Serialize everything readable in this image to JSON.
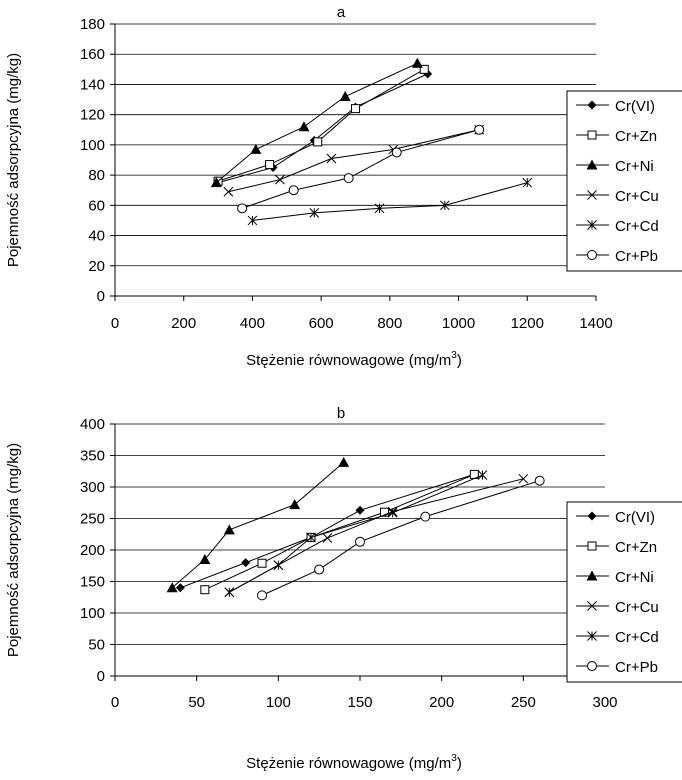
{
  "chart_data": [
    {
      "type": "line",
      "title": "a",
      "xlabel": "Stężenie równowagowe (mg/m",
      "xlabel_sup": "3",
      "xlabel_suffix": ")",
      "ylabel": "Pojemność adsorpcyjna (mg/kg)",
      "xlim": [
        0,
        1400
      ],
      "ylim": [
        0,
        180
      ],
      "xticks": [
        0,
        200,
        400,
        600,
        800,
        1000,
        1200,
        1400
      ],
      "yticks": [
        0,
        20,
        40,
        60,
        80,
        100,
        120,
        140,
        160,
        180
      ],
      "grid": true,
      "legend_position": "right",
      "series": [
        {
          "name": "Cr(VI)",
          "marker": "diamond",
          "x": [
            300,
            460,
            580,
            700,
            910
          ],
          "y": [
            75,
            85,
            103,
            125,
            147
          ]
        },
        {
          "name": "Cr+Zn",
          "marker": "square-open",
          "x": [
            300,
            450,
            590,
            700,
            900
          ],
          "y": [
            76,
            87,
            102,
            124,
            150
          ]
        },
        {
          "name": "Cr+Ni",
          "marker": "triangle",
          "x": [
            295,
            410,
            550,
            670,
            880
          ],
          "y": [
            75,
            97,
            112,
            132,
            154
          ]
        },
        {
          "name": "Cr+Cu",
          "marker": "x",
          "x": [
            330,
            480,
            630,
            810,
            1060
          ],
          "y": [
            69,
            77,
            91,
            97,
            110
          ]
        },
        {
          "name": "Cr+Cd",
          "marker": "asterisk",
          "x": [
            400,
            580,
            770,
            960,
            1200
          ],
          "y": [
            50,
            55,
            58,
            60,
            75
          ]
        },
        {
          "name": "Cr+Pb",
          "marker": "circle-open",
          "x": [
            370,
            520,
            680,
            820,
            1060
          ],
          "y": [
            58,
            70,
            78,
            95,
            110
          ]
        }
      ]
    },
    {
      "type": "line",
      "title": "b",
      "xlabel": "Stężenie równowagowe (mg/m",
      "xlabel_sup": "3",
      "xlabel_suffix": ")",
      "ylabel": "Pojemność adsorpcyjna (mg/kg)",
      "xlim": [
        0,
        300
      ],
      "ylim": [
        0,
        400
      ],
      "xticks": [
        0,
        50,
        100,
        150,
        200,
        250,
        300
      ],
      "yticks": [
        0,
        50,
        100,
        150,
        200,
        250,
        300,
        350,
        400
      ],
      "grid": true,
      "legend_position": "right",
      "series": [
        {
          "name": "Cr(VI)",
          "marker": "diamond",
          "x": [
            40,
            80,
            120,
            150,
            220
          ],
          "y": [
            140,
            180,
            220,
            263,
            320
          ]
        },
        {
          "name": "Cr+Zn",
          "marker": "square-open",
          "x": [
            55,
            90,
            120,
            165,
            220
          ],
          "y": [
            137,
            179,
            220,
            260,
            320
          ]
        },
        {
          "name": "Cr+Ni",
          "marker": "triangle",
          "x": [
            35,
            55,
            70,
            110,
            140
          ],
          "y": [
            140,
            185,
            232,
            272,
            339
          ]
        },
        {
          "name": "Cr+Cu",
          "marker": "x",
          "x": [
            70,
            100,
            130,
            170,
            250
          ],
          "y": [
            133,
            176,
            219,
            261,
            313
          ]
        },
        {
          "name": "Cr+Cd",
          "marker": "asterisk",
          "x": [
            70,
            100,
            120,
            170,
            225
          ],
          "y": [
            133,
            176,
            220,
            259,
            319
          ]
        },
        {
          "name": "Cr+Pb",
          "marker": "circle-open",
          "x": [
            90,
            125,
            150,
            190,
            260
          ],
          "y": [
            128,
            169,
            213,
            253,
            310
          ]
        }
      ]
    }
  ]
}
